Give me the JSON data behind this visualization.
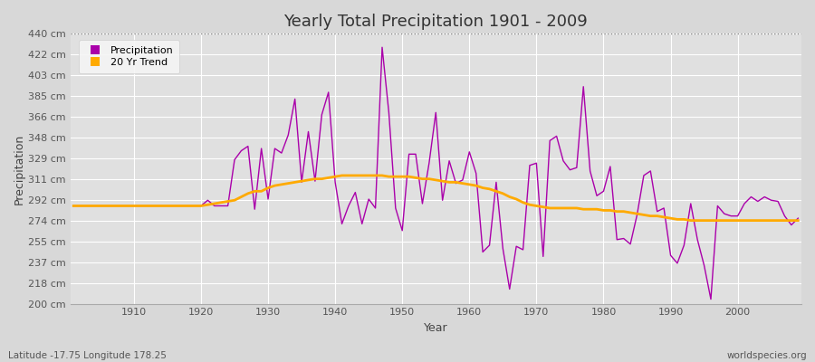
{
  "title": "Yearly Total Precipitation 1901 - 2009",
  "xlabel": "Year",
  "ylabel": "Precipitation",
  "subtitle_left": "Latitude -17.75 Longitude 178.25",
  "subtitle_right": "worldspecies.org",
  "bg_color": "#d8d8d8",
  "plot_bg_color": "#e0e0e0",
  "grid_color": "#f0f0f0",
  "line_color_precip": "#aa00aa",
  "line_color_trend": "#ffaa00",
  "ylim": [
    200,
    440
  ],
  "yticks": [
    200,
    218,
    237,
    255,
    274,
    292,
    311,
    329,
    348,
    366,
    385,
    403,
    422,
    440
  ],
  "xticks": [
    1910,
    1920,
    1930,
    1940,
    1950,
    1960,
    1970,
    1980,
    1990,
    2000
  ],
  "years": [
    1901,
    1902,
    1903,
    1904,
    1905,
    1906,
    1907,
    1908,
    1909,
    1910,
    1911,
    1912,
    1913,
    1914,
    1915,
    1916,
    1917,
    1918,
    1919,
    1920,
    1921,
    1922,
    1923,
    1924,
    1925,
    1926,
    1927,
    1928,
    1929,
    1930,
    1931,
    1932,
    1933,
    1934,
    1935,
    1936,
    1937,
    1938,
    1939,
    1940,
    1941,
    1942,
    1943,
    1944,
    1945,
    1946,
    1947,
    1948,
    1949,
    1950,
    1951,
    1952,
    1953,
    1954,
    1955,
    1956,
    1957,
    1958,
    1959,
    1960,
    1961,
    1962,
    1963,
    1964,
    1965,
    1966,
    1967,
    1968,
    1969,
    1970,
    1971,
    1972,
    1973,
    1974,
    1975,
    1976,
    1977,
    1978,
    1979,
    1980,
    1981,
    1982,
    1983,
    1984,
    1985,
    1986,
    1987,
    1988,
    1989,
    1990,
    1991,
    1992,
    1993,
    1994,
    1995,
    1996,
    1997,
    1998,
    1999,
    2000,
    2001,
    2002,
    2003,
    2004,
    2005,
    2006,
    2007,
    2008,
    2009
  ],
  "precip": [
    287,
    287,
    287,
    287,
    287,
    287,
    287,
    287,
    287,
    287,
    287,
    287,
    287,
    287,
    287,
    287,
    287,
    287,
    287,
    287,
    292,
    287,
    287,
    287,
    328,
    336,
    340,
    284,
    338,
    293,
    338,
    334,
    350,
    382,
    308,
    353,
    309,
    368,
    388,
    308,
    271,
    287,
    299,
    271,
    293,
    285,
    428,
    370,
    285,
    265,
    333,
    333,
    289,
    325,
    370,
    292,
    327,
    307,
    310,
    335,
    316,
    246,
    252,
    308,
    249,
    213,
    251,
    248,
    323,
    325,
    242,
    345,
    349,
    327,
    319,
    321,
    393,
    318,
    296,
    300,
    322,
    257,
    258,
    253,
    279,
    314,
    318,
    282,
    285,
    243,
    236,
    252,
    289,
    257,
    234,
    204,
    287,
    280,
    278,
    278,
    289,
    295,
    291,
    295,
    292,
    291,
    278,
    270,
    276
  ],
  "trend": [
    287,
    287,
    287,
    287,
    287,
    287,
    287,
    287,
    287,
    287,
    287,
    287,
    287,
    287,
    287,
    287,
    287,
    287,
    287,
    287,
    288,
    289,
    290,
    291,
    292,
    295,
    298,
    300,
    300,
    303,
    305,
    306,
    307,
    308,
    309,
    310,
    311,
    311,
    312,
    313,
    314,
    314,
    314,
    314,
    314,
    314,
    314,
    313,
    313,
    313,
    313,
    312,
    311,
    311,
    310,
    309,
    308,
    308,
    307,
    306,
    305,
    303,
    302,
    300,
    298,
    295,
    293,
    290,
    288,
    287,
    286,
    285,
    285,
    285,
    285,
    285,
    284,
    284,
    284,
    283,
    283,
    282,
    282,
    281,
    280,
    279,
    278,
    278,
    277,
    276,
    275,
    275,
    274,
    274,
    274,
    274,
    274,
    274,
    274,
    274,
    274,
    274,
    274,
    274,
    274,
    274,
    274,
    274,
    274
  ]
}
